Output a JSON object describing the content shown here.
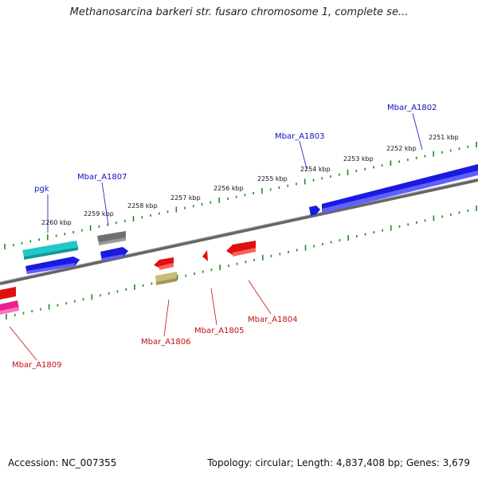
{
  "title": "Methanosarcina barkeri str. fusaro chromosome 1, complete se...",
  "footer": {
    "accession": "Accession: NC_007355",
    "summary": "Topology: circular; Length: 4,837,408 bp; Genes: 3,679"
  },
  "colors": {
    "blue": "#1a1ae0",
    "cyan": "#22c8c8",
    "gray": "#707070",
    "red": "#e01010",
    "khaki": "#c8be78",
    "pink": "#e8208c",
    "tick": "#228822",
    "backbone": "#888888"
  },
  "ticks": [
    "2260 kbp",
    "2259 kbp",
    "2258 kbp",
    "2257 kbp",
    "2256 kbp",
    "2255 kbp",
    "2254 kbp",
    "2253 kbp",
    "2252 kbp",
    "2251 kbp"
  ],
  "genes": {
    "pgk": "pgk",
    "mbar_a1807": "Mbar_A1807",
    "mbar_a1803": "Mbar_A1803",
    "mbar_a1802": "Mbar_A1802",
    "mbar_a1806": "Mbar_A1806",
    "mbar_a1805": "Mbar_A1805",
    "mbar_a1804": "Mbar_A1804",
    "mbar_a1809": "Mbar_A1809"
  }
}
